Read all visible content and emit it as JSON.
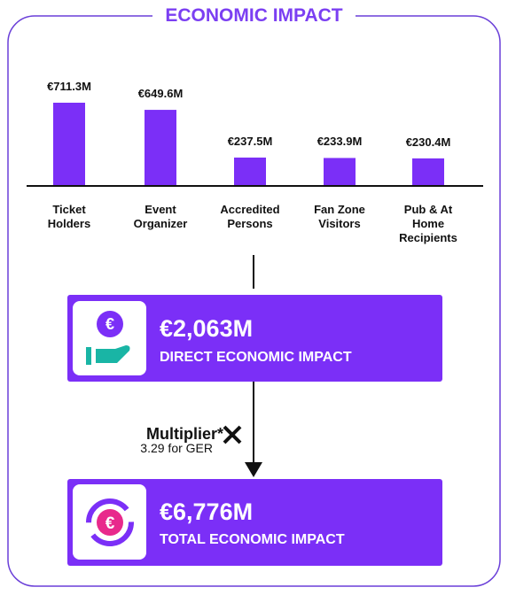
{
  "chart_data": {
    "type": "bar",
    "title": "ECONOMIC IMPACT",
    "categories": [
      "Ticket Holders",
      "Event Organizer",
      "Accredited Persons",
      "Fan Zone Visitors",
      "Pub & At Home Recipients"
    ],
    "values": [
      711.3,
      649.6,
      237.5,
      233.9,
      230.4
    ],
    "value_labels": [
      "€711.3M",
      "€649.6M",
      "€237.5M",
      "€233.9M",
      "€230.4M"
    ],
    "color": "#7b2ff7"
  },
  "direct": {
    "amount": "€2,063M",
    "label": "DIRECT ECONOMIC IMPACT"
  },
  "multiplier": {
    "label": "Multiplier*",
    "note": "3.29 for GER"
  },
  "total": {
    "amount": "€6,776M",
    "label": "TOTAL ECONOMIC IMPACT"
  }
}
